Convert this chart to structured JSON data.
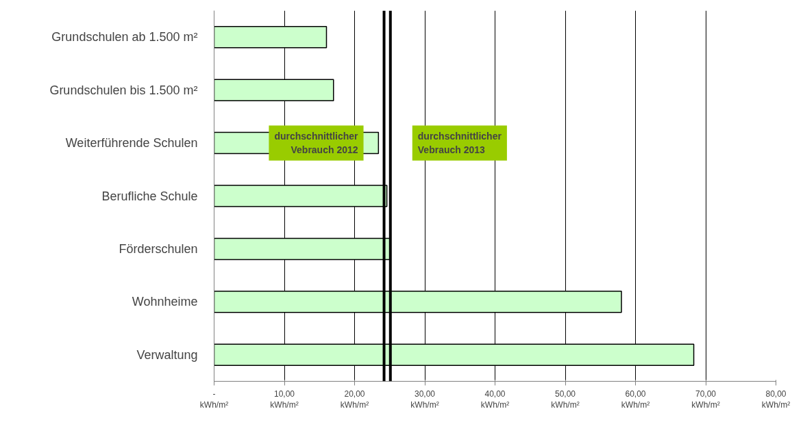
{
  "chart_data": {
    "type": "bar",
    "orientation": "horizontal",
    "categories": [
      "Grundschulen ab 1.500 m²",
      "Grundschulen bis 1.500 m²",
      "Weiterführende Schulen",
      "Berufliche Schule",
      "Förderschulen",
      "Wohnheime",
      "Verwaltung"
    ],
    "values": [
      16.0,
      17.0,
      23.4,
      24.6,
      25.0,
      58.0,
      68.3
    ],
    "color": "#ccffcc",
    "xlim": [
      0,
      80
    ],
    "xticks": [
      {
        "value": 0,
        "label": "-\nkWh/m²"
      },
      {
        "value": 10,
        "label": "10,00\nkWh/m²"
      },
      {
        "value": 20,
        "label": "20,00\nkWh/m²"
      },
      {
        "value": 30,
        "label": "30,00\nkWh/m²"
      },
      {
        "value": 40,
        "label": "40,00\nkWh/m²"
      },
      {
        "value": 50,
        "label": "50,00\nkWh/m²"
      },
      {
        "value": 60,
        "label": "60,00\nkWh/m²"
      },
      {
        "value": 70,
        "label": "70,00\nkWh/m²"
      },
      {
        "value": 80,
        "label": "80,00\nkWh/m²"
      }
    ],
    "grid": "x",
    "ref_lines": [
      {
        "axis": "x",
        "value": 24.2,
        "label": "durchschnittlicher\nVebrauch 2012",
        "color": "#000000"
      },
      {
        "axis": "x",
        "value": 25.1,
        "label": "durchschnittlicher\nVebrauch 2013",
        "color": "#000000"
      }
    ]
  }
}
